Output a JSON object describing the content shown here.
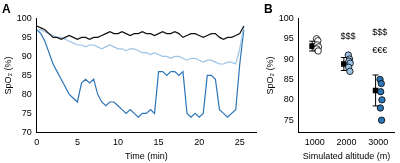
{
  "chart_data": [
    {
      "type": "line",
      "title": "A",
      "x_label": "Time (min)",
      "y_label": "SpO₂ (%)",
      "x": [
        0,
        0.5,
        1,
        1.5,
        2,
        2.5,
        3,
        3.5,
        4,
        4.5,
        5,
        5.5,
        6,
        6.5,
        7,
        7.5,
        8,
        8.5,
        9,
        9.5,
        10,
        10.5,
        11,
        11.5,
        12,
        12.5,
        13,
        13.5,
        14,
        14.5,
        15,
        15.5,
        16,
        16.5,
        17,
        17.5,
        18,
        18.5,
        19,
        19.5,
        20,
        20.5,
        21,
        21.5,
        22,
        22.5,
        23,
        23.5,
        24,
        24.5,
        25,
        25.5
      ],
      "series": [
        {
          "color": "#111111",
          "values": [
            98,
            97.5,
            97,
            96,
            95,
            95,
            94.5,
            95,
            95.5,
            95,
            94.5,
            95,
            95,
            94.5,
            95,
            95,
            95.5,
            96,
            96.5,
            96,
            96,
            96.5,
            96,
            95.5,
            96,
            96,
            96.5,
            96,
            96,
            95.5,
            96,
            96.5,
            96,
            96,
            96.5,
            96,
            95,
            95.5,
            96,
            96,
            95.5,
            95,
            95.5,
            96,
            96,
            95,
            94.5,
            95,
            95,
            95.5,
            96,
            98
          ]
        },
        {
          "color": "#9cc3e6",
          "values": [
            97,
            97,
            96.5,
            96,
            95.5,
            95,
            95,
            94.5,
            94,
            93.5,
            93,
            93,
            92.5,
            93,
            93,
            92.5,
            92,
            92.5,
            93,
            92.5,
            92,
            92,
            91.5,
            92,
            92,
            91.5,
            91,
            91,
            90.5,
            91,
            90.5,
            90,
            90,
            89.5,
            90,
            90,
            89.5,
            89,
            89.5,
            89.5,
            89,
            88.5,
            89,
            89,
            88.5,
            88,
            88,
            88.5,
            88.5,
            88,
            92,
            98
          ]
        },
        {
          "color": "#2e75b6",
          "values": [
            97,
            96,
            94,
            91,
            88,
            86,
            84,
            82,
            80,
            79,
            78,
            83,
            84,
            83,
            84,
            80,
            78,
            77,
            78,
            78,
            77,
            76,
            75,
            76,
            75,
            74,
            75,
            75,
            76,
            75,
            86,
            86,
            85,
            86,
            86,
            85,
            86,
            75,
            74,
            75,
            74,
            75,
            85,
            85,
            84,
            76,
            75,
            74,
            75,
            76,
            88,
            97
          ]
        }
      ],
      "xlim": [
        0,
        27
      ],
      "xticks": [
        0,
        5,
        10,
        15,
        20,
        25
      ],
      "ylim": [
        70,
        100
      ],
      "yticks": [
        70,
        75,
        80,
        85,
        90,
        95,
        100
      ],
      "grid": false
    },
    {
      "type": "scatter",
      "title": "B",
      "x_label": "Simulated altitude (m)",
      "y_label": "SpO₂ (%)",
      "series": [
        {
          "color": "#ffffff",
          "marker": "circle",
          "x": [
            1060,
            1100,
            1080,
            1120,
            1070,
            1110
          ],
          "values": [
            95,
            94.5,
            93.5,
            93,
            92.5,
            92
          ]
        },
        {
          "color": "#9cc3e6",
          "marker": "circle",
          "x": [
            2060,
            2100,
            2080,
            2120,
            2070,
            2110
          ],
          "values": [
            91,
            90,
            89.5,
            89,
            88,
            87
          ]
        },
        {
          "color": "#2e75b6",
          "marker": "circle",
          "x": [
            3060,
            3100,
            3080,
            3120,
            3070,
            3110
          ],
          "values": [
            85,
            84,
            82,
            80,
            78,
            75
          ]
        },
        {
          "color": "#000000",
          "marker": "square",
          "x": [
            920,
            1920,
            2920
          ],
          "values": [
            93.2,
            88.8,
            82.3
          ],
          "error": [
            1.2,
            1.6,
            3.8
          ]
        }
      ],
      "annotations": [
        {
          "text": "$$$",
          "x": 2050,
          "y": 95.5
        },
        {
          "text": "$$$",
          "x": 3050,
          "y": 96.5
        },
        {
          "text": "€€€",
          "x": 3050,
          "y": 92
        }
      ],
      "xlim": [
        500,
        3500
      ],
      "xticks": [
        1000,
        2000,
        3000
      ],
      "ylim": [
        72,
        100
      ],
      "yticks": [
        75,
        80,
        85,
        90,
        95,
        100
      ],
      "grid": false
    }
  ]
}
